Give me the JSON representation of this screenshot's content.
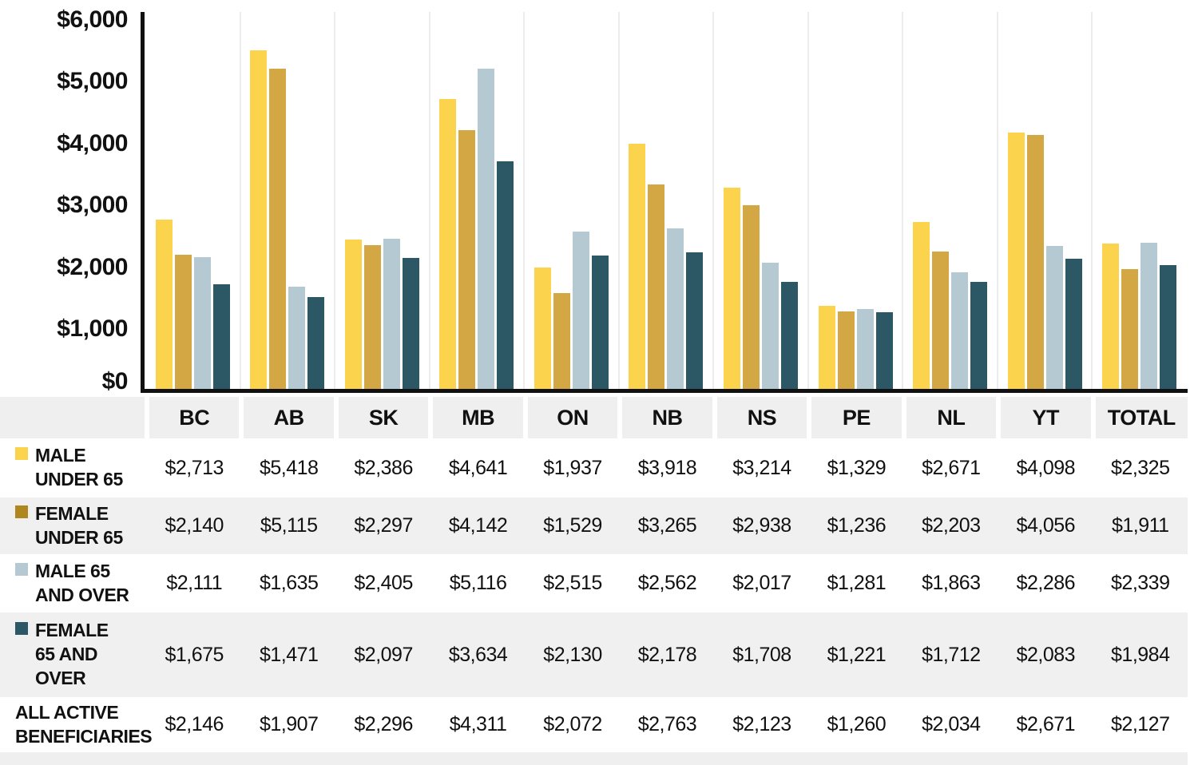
{
  "chart_data": {
    "type": "bar",
    "title": "",
    "xlabel": "",
    "ylabel": "",
    "ylim": [
      0,
      6000
    ],
    "ytick_step": 1000,
    "yticks": [
      6000,
      5000,
      4000,
      3000,
      2000,
      1000,
      0
    ],
    "ytick_labels": [
      "$6,000",
      "$5,000",
      "$4,000",
      "$3,000",
      "$2,000",
      "$1,000",
      "$0"
    ],
    "grid": "light vertical separators between category groups",
    "legend_position": "left column of data table below chart",
    "value_format": "$#,###",
    "categories": [
      "BC",
      "AB",
      "SK",
      "MB",
      "ON",
      "NB",
      "NS",
      "PE",
      "NL",
      "YT",
      "TOTAL"
    ],
    "series": [
      {
        "name": "MALE UNDER 65",
        "color": "#FCD34C",
        "values": [
          2713,
          5418,
          2386,
          4641,
          1937,
          3918,
          3214,
          1329,
          2671,
          4098,
          2325
        ]
      },
      {
        "name": "FEMALE UNDER 65",
        "color": "#D3A744",
        "swatch_color": "#B0861F",
        "values": [
          2140,
          5115,
          2297,
          4142,
          1529,
          3265,
          2938,
          1236,
          2203,
          4056,
          1911
        ]
      },
      {
        "name": "MALE 65 AND OVER",
        "color": "#B4C9D1",
        "values": [
          2111,
          1635,
          2405,
          5116,
          2515,
          2562,
          2017,
          1281,
          1863,
          2286,
          2339
        ]
      },
      {
        "name": "FEMALE 65 AND OVER",
        "color": "#2B5864",
        "values": [
          1675,
          1471,
          2097,
          3634,
          2130,
          2178,
          1708,
          1221,
          1712,
          2083,
          1984
        ]
      }
    ],
    "summary_series": {
      "name": "ALL ACTIVE BENEFICIARIES",
      "values": [
        2146,
        1907,
        2296,
        4311,
        2072,
        2763,
        2123,
        1260,
        2034,
        2671,
        2127
      ]
    }
  },
  "table": {
    "corner_label": "",
    "column_headers": [
      "BC",
      "AB",
      "SK",
      "MB",
      "ON",
      "NB",
      "NS",
      "PE",
      "NL",
      "YT",
      "TOTAL"
    ],
    "rows": [
      {
        "label": "MALE UNDER 65",
        "label_lines": [
          "MALE",
          "UNDER 65"
        ],
        "has_swatch": true
      },
      {
        "label": "FEMALE UNDER 65",
        "label_lines": [
          "FEMALE",
          "UNDER 65"
        ],
        "has_swatch": true
      },
      {
        "label": "MALE 65 AND OVER",
        "label_lines": [
          "MALE 65",
          "AND OVER"
        ],
        "has_swatch": true
      },
      {
        "label": "FEMALE 65 AND OVER",
        "label_lines": [
          "FEMALE",
          "65 AND",
          "OVER"
        ],
        "has_swatch": true
      },
      {
        "label": "ALL ACTIVE BENEFICIARIES",
        "label_lines": [
          "ALL ACTIVE",
          "BENEFICIARIES"
        ],
        "has_swatch": false
      }
    ]
  },
  "colors": {
    "male_under_65": "#FCD34C",
    "female_under_65_bar": "#D3A744",
    "female_under_65_swatch": "#B0861F",
    "male_65_and_over": "#B4C9D1",
    "female_65_and_over": "#2B5864",
    "axis": "#111111",
    "header_bg": "#EFEFEF",
    "row_alt_bg": "#F0F0F0",
    "group_separator": "#ECECEC"
  }
}
